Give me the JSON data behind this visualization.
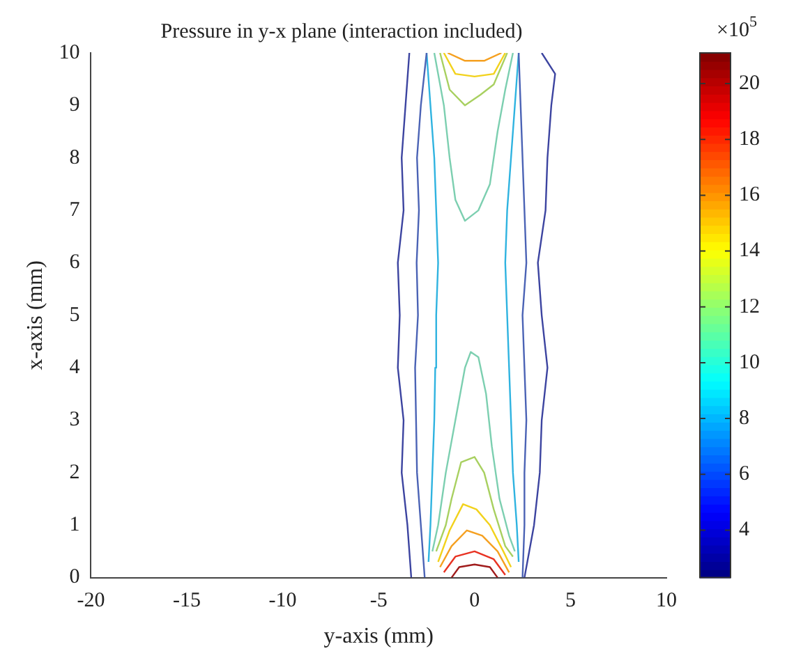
{
  "chart_data": {
    "type": "line",
    "title": "Pressure in y-x plane (interaction included)",
    "xlabel": "y-axis (mm)",
    "ylabel": "x-axis (mm)",
    "clabel": "×10$^{5}$",
    "clim": [
      2.3,
      21.1
    ],
    "cticks": [
      4,
      6,
      8,
      10,
      12,
      14,
      16,
      18,
      20
    ],
    "xlim": [
      -20,
      10
    ],
    "xticks": [
      -20,
      -15,
      -10,
      -5,
      0,
      5,
      10
    ],
    "ylim": [
      0,
      10
    ],
    "yticks": [
      0,
      1,
      2,
      3,
      4,
      5,
      6,
      7,
      8,
      9,
      10
    ],
    "grid": false,
    "legend": false,
    "marker": "none",
    "line_style": "solid",
    "series": [
      {
        "color": "#3c44a0",
        "x": [
          -3.3,
          -3.5,
          -3.8,
          -3.7,
          -4.0,
          -3.9,
          -4.0,
          -3.7,
          -3.8,
          -3.6,
          -3.4
        ],
        "values": [
          0,
          1,
          2,
          3,
          4,
          5,
          6,
          7,
          8,
          9,
          10
        ]
      },
      {
        "color": "#3c44a0",
        "x": [
          2.6,
          3.1,
          3.4,
          3.5,
          3.8,
          3.5,
          3.3,
          3.7,
          3.8,
          4.0,
          4.2,
          3.5
        ],
        "values": [
          0,
          1,
          2,
          3,
          4,
          5,
          6,
          7,
          8,
          9,
          9.6,
          10
        ]
      },
      {
        "color": "#4b63b5",
        "x": [
          -2.6,
          -2.8,
          -3.0,
          -3.05,
          -3.1,
          -2.95,
          -3.02,
          -2.9,
          -3.0,
          -2.8,
          -2.5
        ],
        "values": [
          0,
          1,
          2,
          3,
          4,
          5,
          6,
          7,
          8,
          9,
          10
        ]
      },
      {
        "color": "#4b63b5",
        "x": [
          2.5,
          2.6,
          2.6,
          2.7,
          2.6,
          2.5,
          2.7,
          2.6,
          2.5,
          2.4,
          2.3
        ],
        "values": [
          0,
          1,
          2,
          3,
          4,
          5,
          6,
          7,
          8,
          9,
          10
        ]
      },
      {
        "color": "#2fb3e0",
        "x": [
          -2.4,
          -2.3,
          -2.2,
          -2.1,
          -2.05,
          -2.0,
          -1.9,
          -2.0,
          -2.1,
          -2.3,
          -2.5
        ],
        "values": [
          0.3,
          1,
          2,
          3,
          4,
          5,
          6,
          7,
          8,
          9,
          10
        ]
      },
      {
        "color": "#2fb3e0",
        "x": [
          2.3,
          2.2,
          2.0,
          1.9,
          1.8,
          1.7,
          1.6,
          1.7,
          1.9,
          2.1,
          2.3
        ],
        "values": [
          0.3,
          1,
          2,
          3,
          4,
          5,
          6,
          7,
          8,
          9,
          10
        ]
      },
      {
        "color": "#7ccfb0",
        "x": [
          -2.2,
          -1.9,
          -1.5,
          -1.0,
          -0.5,
          -0.2,
          0.2,
          0.6,
          0.9,
          1.3,
          1.8,
          2.1
        ],
        "values": [
          0.5,
          1,
          2,
          3,
          4,
          4.3,
          4.2,
          3.5,
          2.5,
          1.5,
          0.8,
          0.5
        ]
      },
      {
        "color": "#7ccfb0",
        "x": [
          -2.1,
          -1.6,
          -1.3,
          -1.0,
          -0.5,
          0.2,
          0.8,
          1.2,
          1.6,
          2.0
        ],
        "values": [
          10,
          9,
          8,
          7.2,
          6.8,
          7,
          7.5,
          8.5,
          9.3,
          10
        ]
      },
      {
        "color": "#a8d060",
        "x": [
          -2.0,
          -1.5,
          -1.2,
          -0.7,
          0,
          0.5,
          1.0,
          1.6,
          2.0
        ],
        "values": [
          0.5,
          1,
          1.5,
          2.2,
          2.3,
          2.0,
          1.3,
          0.6,
          0.4
        ]
      },
      {
        "color": "#a8d060",
        "x": [
          -1.8,
          -1.3,
          -0.5,
          0.3,
          1.0,
          1.7
        ],
        "values": [
          10,
          9.3,
          9.0,
          9.2,
          9.4,
          10
        ]
      },
      {
        "color": "#f2d21c",
        "x": [
          -1.9,
          -1.3,
          -0.6,
          0.1,
          0.8,
          1.5,
          1.9
        ],
        "values": [
          0.3,
          0.9,
          1.4,
          1.3,
          1.0,
          0.5,
          0.2
        ]
      },
      {
        "color": "#f2d21c",
        "x": [
          -1.6,
          -1.0,
          0,
          1.0,
          1.6
        ],
        "values": [
          10,
          9.6,
          9.55,
          9.6,
          10
        ]
      },
      {
        "color": "#f5a020",
        "x": [
          -1.8,
          -1.2,
          -0.4,
          0.4,
          1.2,
          1.8
        ],
        "values": [
          0.2,
          0.6,
          0.9,
          0.8,
          0.5,
          0.1
        ]
      },
      {
        "color": "#f5a020",
        "x": [
          -1.4,
          -0.5,
          0.5,
          1.4
        ],
        "values": [
          10,
          9.85,
          9.85,
          10
        ]
      },
      {
        "color": "#e83222",
        "x": [
          -1.6,
          -1.0,
          0,
          1.0,
          1.6
        ],
        "values": [
          0.1,
          0.4,
          0.5,
          0.35,
          0.05
        ]
      },
      {
        "color": "#a01c1c",
        "x": [
          -1.2,
          -0.8,
          0,
          0.8,
          1.2
        ],
        "values": [
          0,
          0.2,
          0.25,
          0.2,
          0
        ]
      }
    ]
  }
}
